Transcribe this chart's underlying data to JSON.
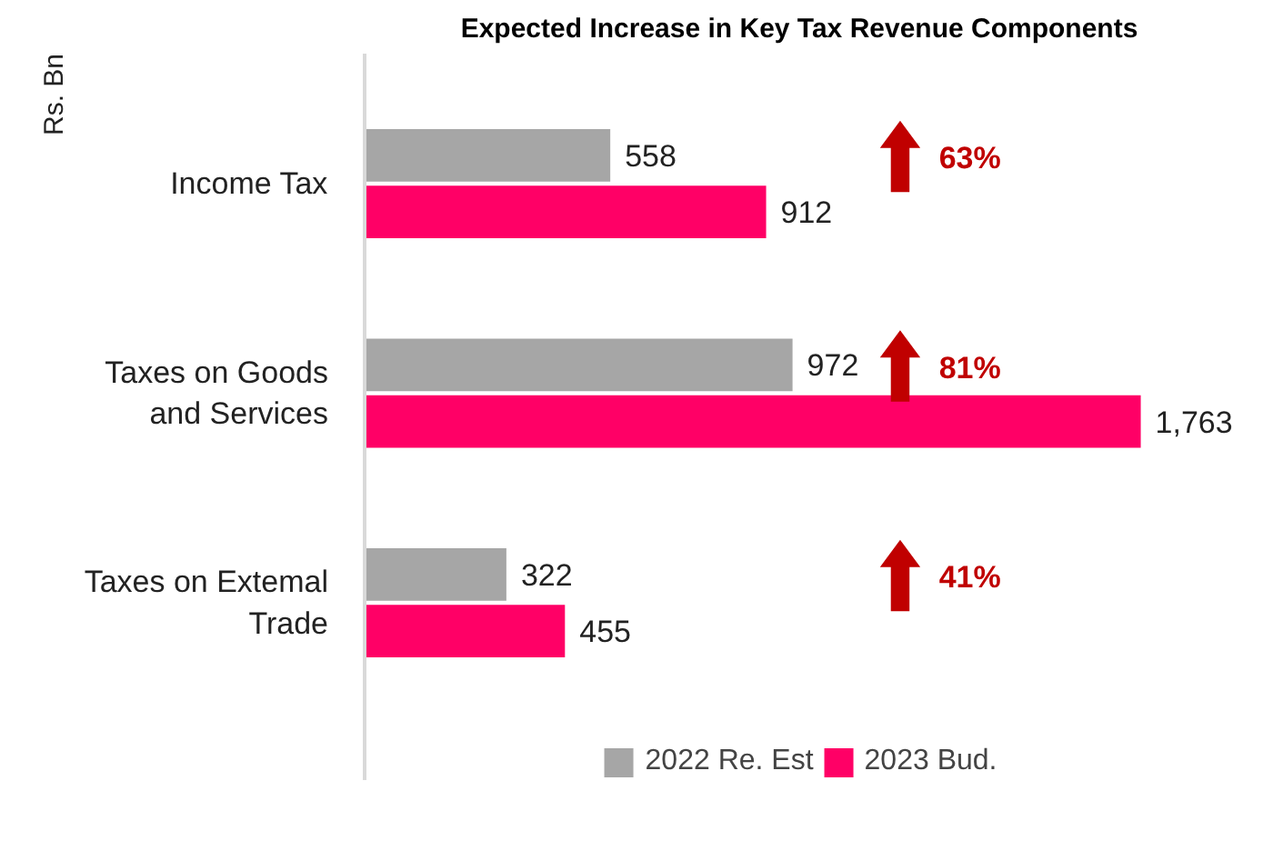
{
  "chart_data": {
    "type": "bar",
    "orientation": "horizontal",
    "title": "Expected Increase in Key Tax Revenue Components",
    "ylabel": "Rs. Bn",
    "categories": [
      "Income Tax",
      "Taxes on Goods\nand Services",
      "Taxes on Extemal\nTrade"
    ],
    "series": [
      {
        "name": "2022 Re. Est",
        "color": "#a6a6a6",
        "values": [
          558,
          972,
          322
        ],
        "value_labels": [
          "558",
          "972",
          "322"
        ]
      },
      {
        "name": "2023 Bud.",
        "color": "#ff0066",
        "values": [
          912,
          1763,
          455
        ],
        "value_labels": [
          "912",
          "1,763",
          "455"
        ]
      }
    ],
    "annotations": [
      "63%",
      "81%",
      "41%"
    ],
    "legend": "bottom",
    "grid": false
  }
}
